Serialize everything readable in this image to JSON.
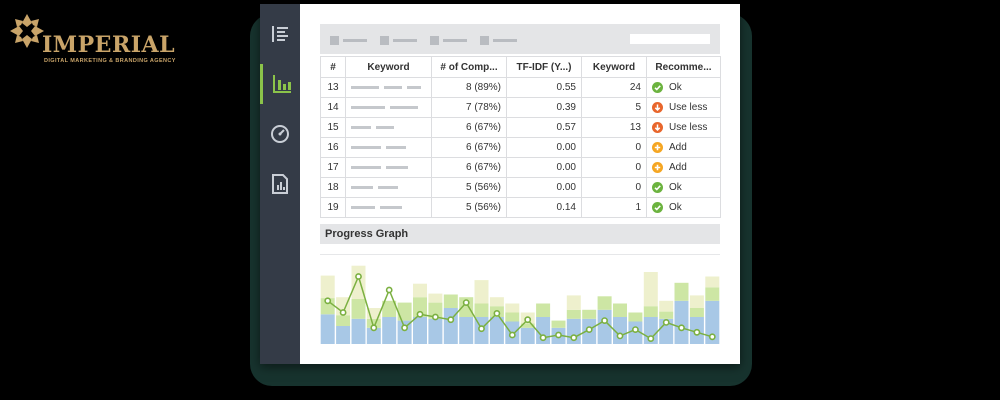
{
  "brand": {
    "name": "IMPERIAL",
    "tagline": "DIGITAL MARKETING & BRANDING AGENCY",
    "color": "#c9a469"
  },
  "sidebar": {
    "items": [
      {
        "name": "report-list",
        "icon": "list-icon",
        "active": false
      },
      {
        "name": "keyword-chart",
        "icon": "bar-chart-icon",
        "active": true
      },
      {
        "name": "speed-gauge",
        "icon": "gauge-icon",
        "active": false
      },
      {
        "name": "document-report",
        "icon": "document-chart-icon",
        "active": false
      }
    ],
    "accent": "#8bc34a"
  },
  "table": {
    "headers": [
      "#",
      "Keyword",
      "# of Comp...",
      "TF-IDF (Y...)",
      "Keyword",
      "Recomme..."
    ],
    "rows": [
      {
        "id": "13",
        "competitors": "8 (89%)",
        "tfidf": "0.55",
        "keyword_count": "24",
        "recommendation": "Ok",
        "status": "ok"
      },
      {
        "id": "14",
        "competitors": "7 (78%)",
        "tfidf": "0.39",
        "keyword_count": "5",
        "recommendation": "Use less",
        "status": "less"
      },
      {
        "id": "15",
        "competitors": "6 (67%)",
        "tfidf": "0.57",
        "keyword_count": "13",
        "recommendation": "Use less",
        "status": "less"
      },
      {
        "id": "16",
        "competitors": "6 (67%)",
        "tfidf": "0.00",
        "keyword_count": "0",
        "recommendation": "Add",
        "status": "add"
      },
      {
        "id": "17",
        "competitors": "6 (67%)",
        "tfidf": "0.00",
        "keyword_count": "0",
        "recommendation": "Add",
        "status": "add"
      },
      {
        "id": "18",
        "competitors": "5 (56%)",
        "tfidf": "0.00",
        "keyword_count": "0",
        "recommendation": "Ok",
        "status": "ok"
      },
      {
        "id": "19",
        "competitors": "5 (56%)",
        "tfidf": "0.14",
        "keyword_count": "1",
        "recommendation": "Ok",
        "status": "ok"
      }
    ],
    "status_colors": {
      "ok": "#6cb33f",
      "less": "#e8662c",
      "add": "#f5a623"
    }
  },
  "graph": {
    "title": "Progress Graph"
  },
  "chart_data": {
    "type": "bar",
    "stacked": true,
    "ylim": [
      0,
      100
    ],
    "grid": false,
    "series": [
      {
        "color": "#a8c8e6",
        "values": [
          33,
          20,
          28,
          18,
          30,
          26,
          30,
          28,
          40,
          30,
          30,
          30,
          25,
          18,
          30,
          18,
          28,
          28,
          38,
          30,
          25,
          30,
          28,
          48,
          30,
          48
        ]
      },
      {
        "color": "#cde6a4",
        "values": [
          18,
          12,
          22,
          10,
          18,
          20,
          22,
          18,
          15,
          22,
          15,
          12,
          10,
          5,
          15,
          8,
          10,
          10,
          15,
          15,
          10,
          12,
          8,
          20,
          10,
          15
        ]
      },
      {
        "color": "#eef0cd",
        "values": [
          25,
          20,
          37,
          12,
          0,
          0,
          15,
          10,
          0,
          0,
          26,
          10,
          10,
          12,
          0,
          0,
          16,
          0,
          0,
          0,
          0,
          38,
          12,
          0,
          14,
          12
        ]
      }
    ],
    "line": {
      "color": "#7bb041",
      "values": [
        48,
        35,
        75,
        18,
        60,
        18,
        33,
        30,
        27,
        46,
        17,
        34,
        10,
        27,
        7,
        10,
        7,
        16,
        26,
        9,
        16,
        6,
        24,
        18,
        13,
        8
      ]
    }
  }
}
